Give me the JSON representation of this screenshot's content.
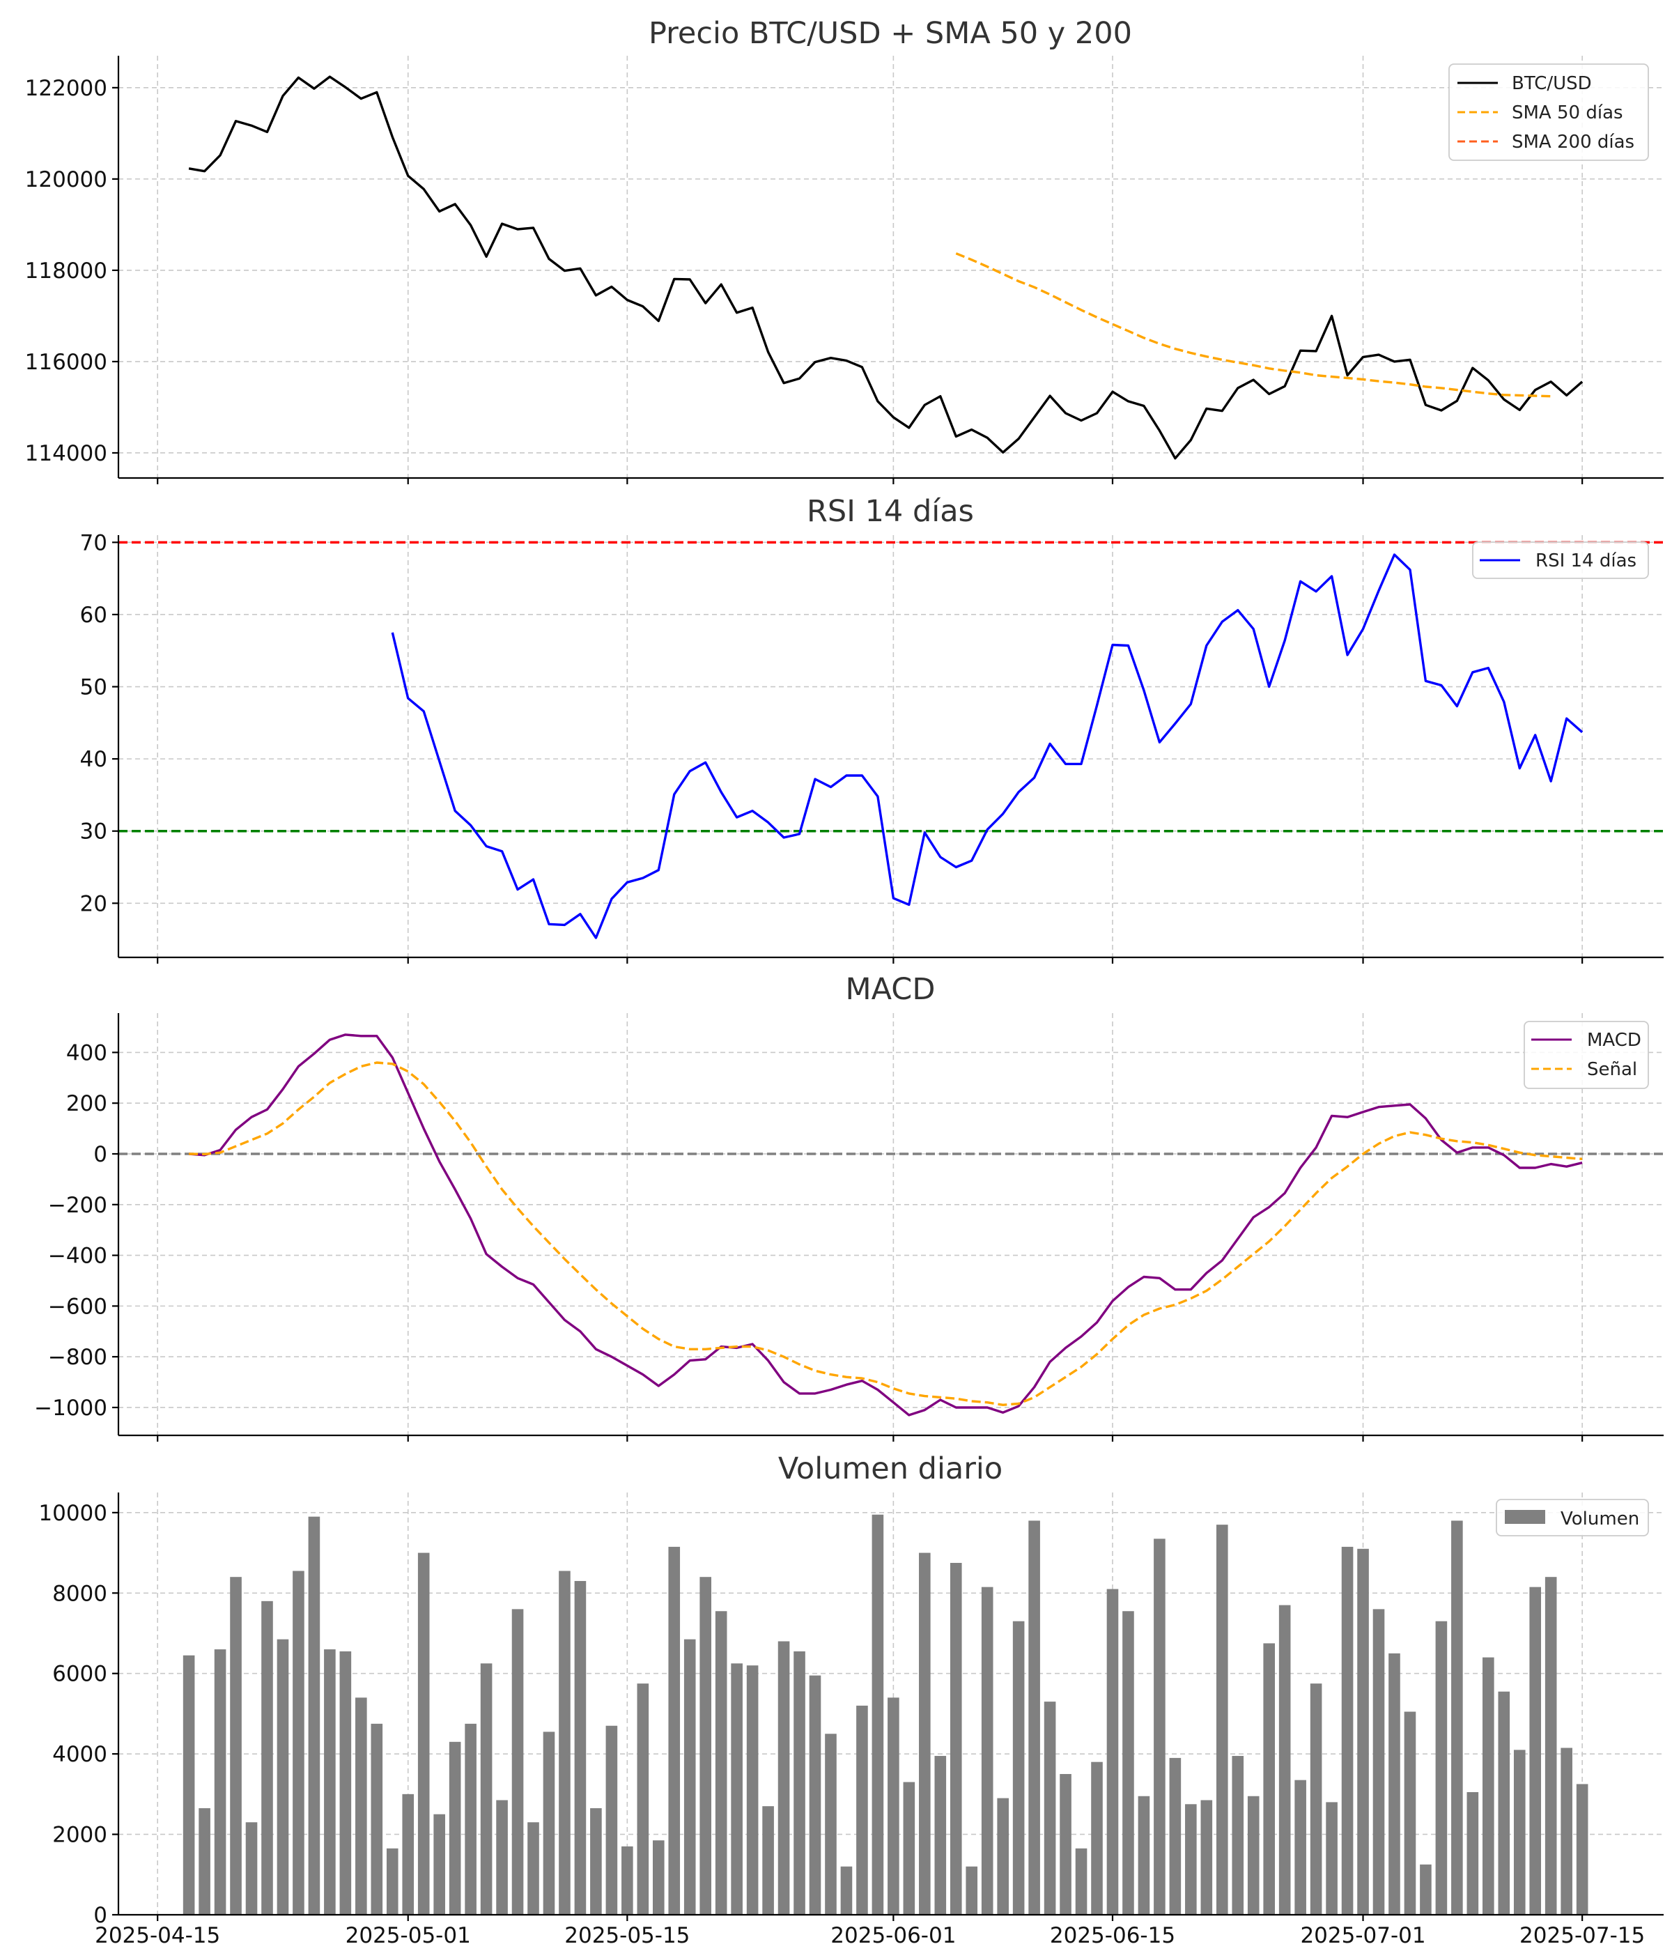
{
  "chart_data": [
    {
      "type": "line",
      "title": "Precio BTC/USD + SMA 50 y 200",
      "xlabel": "",
      "ylabel": "",
      "ylim": [
        113450,
        122700
      ],
      "yticks": [
        114000,
        116000,
        118000,
        120000,
        122000
      ],
      "ytick_labels": [
        "114000",
        "116000",
        "118000",
        "120000",
        "122000"
      ],
      "legend_position": "top-right",
      "grid": true,
      "series": [
        {
          "name": "BTC/USD",
          "color": "#000000",
          "style": "solid",
          "start_day": 2,
          "values": [
            120230,
            120170,
            120520,
            121270,
            121170,
            121030,
            121820,
            122220,
            121980,
            122240,
            122010,
            121760,
            121900,
            120920,
            120070,
            119780,
            119290,
            119450,
            118990,
            118300,
            119020,
            118900,
            118930,
            118250,
            117990,
            118040,
            117450,
            117640,
            117350,
            117210,
            116890,
            117810,
            117800,
            117280,
            117690,
            117070,
            117180,
            116210,
            115530,
            115630,
            115990,
            116080,
            116020,
            115880,
            115130,
            114780,
            114550,
            115050,
            115240,
            114360,
            114510,
            114330,
            114010,
            114310,
            114780,
            115250,
            114870,
            114710,
            114870,
            115340,
            115130,
            115030,
            114490,
            113880,
            114280,
            114970,
            114920,
            115420,
            115600,
            115290,
            115460,
            116240,
            116230,
            117000,
            115700,
            116100,
            116150,
            116000,
            116040,
            115050,
            114930,
            115140,
            115860,
            115590,
            115170,
            114940,
            115380,
            115560,
            115260,
            115560
          ]
        },
        {
          "name": "SMA 50 días",
          "color": "#ffa500",
          "style": "dashed",
          "start_day": 51,
          "values": [
            118370,
            118230,
            118080,
            117920,
            117760,
            117630,
            117470,
            117300,
            117130,
            116970,
            116820,
            116670,
            116520,
            116390,
            116280,
            116190,
            116110,
            116040,
            115980,
            115920,
            115850,
            115800,
            115760,
            115700,
            115670,
            115640,
            115610,
            115570,
            115540,
            115500,
            115450,
            115420,
            115380,
            115340,
            115300,
            115270,
            115260,
            115250,
            115240
          ]
        },
        {
          "name": "SMA 200 días",
          "color": "#ff5f1f",
          "style": "dashed",
          "start_day": 2,
          "values": []
        }
      ]
    },
    {
      "type": "line",
      "title": "RSI 14 días",
      "xlabel": "",
      "ylabel": "",
      "ylim": [
        12.5,
        71
      ],
      "yticks": [
        20,
        30,
        40,
        50,
        60,
        70
      ],
      "ytick_labels": [
        "20",
        "30",
        "40",
        "50",
        "60",
        "70"
      ],
      "legend_position": "top-right",
      "grid": true,
      "reference_lines": [
        {
          "value": 70,
          "color": "#ff0000",
          "style": "dashed"
        },
        {
          "value": 30,
          "color": "#008000",
          "style": "dashed"
        }
      ],
      "series": [
        {
          "name": "RSI 14 días",
          "color": "#0000ff",
          "style": "solid",
          "start_day": 15,
          "values": [
            57.5,
            48.4,
            46.6,
            39.7,
            32.8,
            30.8,
            27.9,
            27.2,
            21.9,
            23.3,
            17.1,
            17.0,
            18.5,
            15.2,
            20.6,
            22.9,
            23.5,
            24.6,
            35.1,
            38.3,
            39.5,
            35.4,
            31.9,
            32.8,
            31.2,
            29.1,
            29.6,
            37.2,
            36.1,
            37.7,
            37.7,
            34.8,
            20.7,
            19.8,
            29.8,
            26.4,
            25.0,
            25.9,
            30.2,
            32.4,
            35.4,
            37.4,
            42.1,
            39.3,
            39.3,
            47.4,
            55.8,
            55.7,
            49.5,
            42.3,
            44.9,
            47.6,
            55.7,
            59.0,
            60.6,
            58.0,
            50.0,
            56.4,
            64.6,
            63.2,
            65.3,
            54.4,
            58.0,
            63.3,
            68.3,
            66.2,
            50.8,
            50.2,
            47.3,
            52.0,
            52.6,
            47.9,
            38.7,
            43.3,
            36.9,
            45.6,
            43.7
          ]
        }
      ]
    },
    {
      "type": "line",
      "title": "MACD",
      "xlabel": "",
      "ylabel": "",
      "ylim": [
        -1110,
        555
      ],
      "yticks": [
        -1000,
        -800,
        -600,
        -400,
        -200,
        0,
        200,
        400
      ],
      "ytick_labels": [
        "−1000",
        "−800",
        "−600",
        "−400",
        "−200",
        "0",
        "200",
        "400"
      ],
      "legend_position": "top-right",
      "grid": true,
      "reference_lines": [
        {
          "value": 0,
          "color": "#808080",
          "style": "dashed"
        }
      ],
      "series": [
        {
          "name": "MACD",
          "color": "#800080",
          "style": "solid",
          "start_day": 2,
          "values": [
            0,
            -5,
            15,
            95,
            145,
            175,
            255,
            345,
            395,
            450,
            470,
            465,
            465,
            380,
            240,
            100,
            -30,
            -140,
            -255,
            -395,
            -445,
            -490,
            -515,
            -585,
            -655,
            -700,
            -770,
            -800,
            -835,
            -870,
            -915,
            -870,
            -815,
            -810,
            -760,
            -765,
            -750,
            -815,
            -900,
            -945,
            -945,
            -930,
            -910,
            -895,
            -930,
            -980,
            -1030,
            -1010,
            -970,
            -1000,
            -1000,
            -1000,
            -1020,
            -995,
            -920,
            -820,
            -765,
            -720,
            -665,
            -580,
            -525,
            -485,
            -490,
            -535,
            -535,
            -470,
            -420,
            -335,
            -250,
            -210,
            -155,
            -55,
            25,
            150,
            145,
            165,
            185,
            190,
            195,
            140,
            55,
            5,
            25,
            25,
            -5,
            -55,
            -55,
            -40,
            -50,
            -35
          ]
        },
        {
          "name": "Señal",
          "color": "#ffa500",
          "style": "dashed",
          "start_day": 2,
          "values": [
            0,
            -1,
            5,
            30,
            55,
            80,
            120,
            175,
            225,
            280,
            315,
            345,
            360,
            355,
            325,
            275,
            205,
            130,
            45,
            -50,
            -140,
            -215,
            -285,
            -350,
            -415,
            -475,
            -535,
            -590,
            -640,
            -690,
            -730,
            -760,
            -770,
            -770,
            -765,
            -760,
            -760,
            -775,
            -800,
            -830,
            -855,
            -870,
            -880,
            -885,
            -900,
            -925,
            -945,
            -955,
            -960,
            -965,
            -975,
            -980,
            -990,
            -985,
            -960,
            -920,
            -880,
            -840,
            -790,
            -730,
            -675,
            -635,
            -610,
            -595,
            -570,
            -540,
            -495,
            -445,
            -395,
            -345,
            -285,
            -220,
            -155,
            -95,
            -50,
            0,
            40,
            70,
            85,
            75,
            60,
            50,
            45,
            35,
            20,
            5,
            -5,
            -10,
            -15,
            -20
          ]
        }
      ]
    },
    {
      "type": "bar",
      "title": "Volumen diario",
      "xlabel": "",
      "ylabel": "",
      "ylim": [
        0,
        10500
      ],
      "yticks": [
        0,
        2000,
        4000,
        6000,
        8000,
        10000
      ],
      "ytick_labels": [
        "0",
        "2000",
        "4000",
        "6000",
        "8000",
        "10000"
      ],
      "legend_position": "top-right",
      "grid": true,
      "series": [
        {
          "name": "Volumen",
          "color": "#808080",
          "start_day": 2,
          "values": [
            6450,
            2650,
            6600,
            8400,
            2300,
            7800,
            6850,
            8550,
            9900,
            6600,
            6550,
            5400,
            4750,
            1650,
            3000,
            9000,
            2500,
            4300,
            4750,
            6250,
            2850,
            7600,
            2300,
            4550,
            8550,
            8300,
            2650,
            4700,
            1700,
            5750,
            1850,
            9150,
            6850,
            8400,
            7550,
            6250,
            6200,
            2700,
            6800,
            6550,
            5950,
            4500,
            1200,
            5200,
            9950,
            5400,
            3300,
            9000,
            3950,
            8750,
            1200,
            8150,
            2900,
            7300,
            9800,
            5300,
            3500,
            1650,
            3800,
            8100,
            7550,
            2950,
            9350,
            3900,
            2750,
            2850,
            9700,
            3950,
            2950,
            6750,
            7700,
            3350,
            5750,
            2800,
            9150,
            9100,
            7600,
            6500,
            5050,
            1250,
            7300,
            9800,
            3050,
            6400,
            5550,
            4100,
            8150,
            8400,
            4150,
            3250
          ]
        }
      ]
    }
  ],
  "x_axis": {
    "tick_labels": [
      "2025-04-15",
      "2025-05-01",
      "2025-05-15",
      "2025-06-01",
      "2025-06-15",
      "2025-07-01",
      "2025-07-15"
    ],
    "tick_days": [
      0,
      16,
      30,
      47,
      61,
      77,
      91
    ],
    "xlim_days": [
      -2.5,
      96.2
    ]
  }
}
